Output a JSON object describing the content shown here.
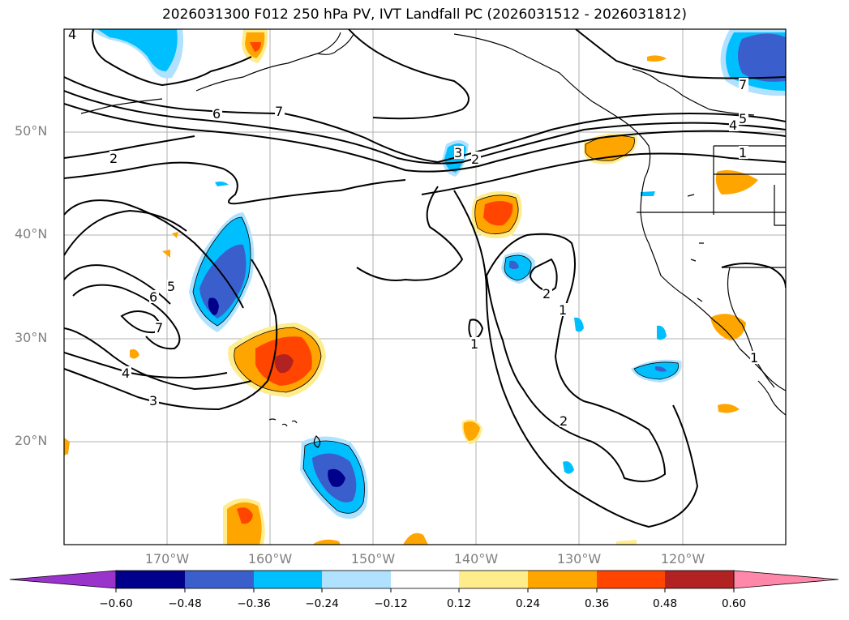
{
  "title": "2026031300 F012 250 hPa PV, IVT Landfall PC (2026031512 - 2026031812)",
  "axes": {
    "lat_labels": [
      "50°N",
      "40°N",
      "30°N",
      "20°N"
    ],
    "lon_labels": [
      "170°W",
      "160°W",
      "150°W",
      "140°W",
      "130°W",
      "120°W"
    ]
  },
  "contour_labels": [
    "4",
    "6",
    "7",
    "2",
    "3",
    "2",
    "5",
    "6",
    "7",
    "4",
    "3",
    "1",
    "2",
    "1",
    "2",
    "7",
    "5",
    "4",
    "1",
    "1"
  ],
  "colorbar": {
    "ticks": [
      "−0.60",
      "−0.48",
      "−0.36",
      "−0.24",
      "−0.12",
      "0.12",
      "0.24",
      "0.36",
      "0.48",
      "0.60"
    ],
    "colors": [
      "#9933cc",
      "#00008b",
      "#3a5fcd",
      "#00bfff",
      "#b0e2ff",
      "#ffffff",
      "#ffec8b",
      "#ffa500",
      "#ff4500",
      "#b22222",
      "#ff88aa"
    ]
  },
  "palette": {
    "neg_strong": "#00008b",
    "neg_mid": "#3a5fcd",
    "neg_light": "#00bfff",
    "neg_faint": "#b0e2ff",
    "pos_faint": "#ffec8b",
    "pos_light": "#ffa500",
    "pos_mid": "#ff4500",
    "pos_strong": "#b22222"
  }
}
